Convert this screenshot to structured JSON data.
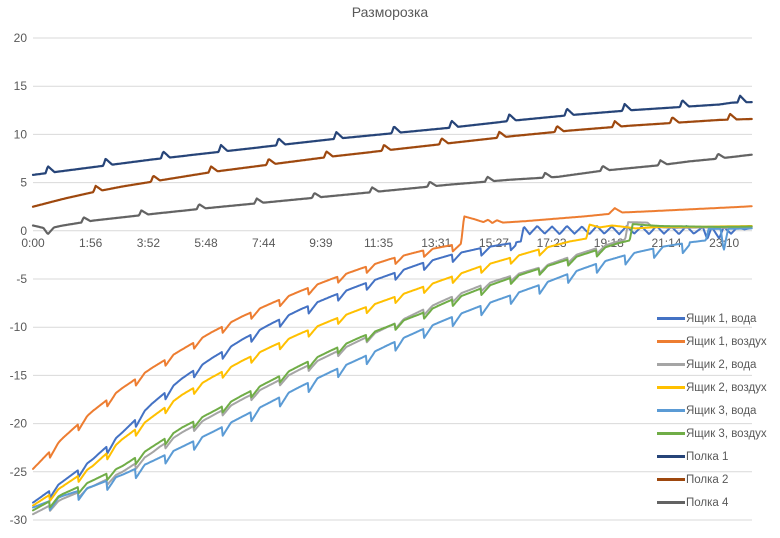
{
  "chart_data": {
    "type": "line",
    "title": "Разморозка",
    "x_tick_labels": [
      "0:00",
      "1:56",
      "3:52",
      "5:48",
      "7:44",
      "9:39",
      "11:35",
      "13:31",
      "15:27",
      "17:23",
      "19:18",
      "21:14",
      "23:10"
    ],
    "x_tick_hours": [
      0,
      1.933,
      3.867,
      5.8,
      7.733,
      9.65,
      11.583,
      13.517,
      15.45,
      17.383,
      19.3,
      21.233,
      23.167
    ],
    "x_range": [
      0,
      24.1
    ],
    "y_range": [
      -30,
      20
    ],
    "y_ticks": [
      20,
      15,
      10,
      5,
      0,
      -5,
      -10,
      -15,
      -20,
      -25,
      -30
    ],
    "grid_color": "#D9D9D9",
    "axis_text_color": "#595959",
    "legend_position": "right",
    "series": [
      {
        "name": "Ящик 1, вода",
        "color": "#4472C4",
        "width": 2,
        "ripple": {
          "type": "dip",
          "period": 0.965,
          "phase": 0.55,
          "depth": 0.8,
          "recover": 0.3,
          "cutoff": -1.2
        },
        "points": [
          [
            0,
            -28.2
          ],
          [
            1,
            -26.0
          ],
          [
            2,
            -23.7
          ],
          [
            3,
            -20.9
          ],
          [
            4,
            -17.9
          ],
          [
            5,
            -15.3
          ],
          [
            6,
            -13.2
          ],
          [
            7,
            -11.3
          ],
          [
            8,
            -9.6
          ],
          [
            9,
            -8.1
          ],
          [
            10,
            -6.8
          ],
          [
            11,
            -5.6
          ],
          [
            12,
            -4.5
          ],
          [
            13,
            -3.4
          ],
          [
            14,
            -2.5
          ],
          [
            15,
            -1.8
          ],
          [
            16,
            -1.3
          ],
          [
            16.35,
            -1.1
          ],
          [
            16.45,
            0.45
          ],
          [
            16.65,
            -0.35
          ],
          [
            16.9,
            0.5
          ],
          [
            17.15,
            -0.3
          ],
          [
            17.4,
            0.45
          ],
          [
            17.65,
            -0.35
          ],
          [
            17.9,
            0.5
          ],
          [
            18.15,
            -0.3
          ],
          [
            18.4,
            0.45
          ],
          [
            18.65,
            -0.35
          ],
          [
            18.9,
            0.5
          ],
          [
            19.15,
            -0.3
          ],
          [
            19.4,
            0.45
          ],
          [
            19.65,
            -0.35
          ],
          [
            19.9,
            0.5
          ],
          [
            20.15,
            -0.3
          ],
          [
            20.4,
            0.45
          ],
          [
            20.65,
            -0.35
          ],
          [
            20.9,
            0.5
          ],
          [
            21.15,
            -0.3
          ],
          [
            21.4,
            0.45
          ],
          [
            21.65,
            -0.35
          ],
          [
            21.9,
            0.5
          ],
          [
            22.15,
            -0.3
          ],
          [
            22.45,
            0.4
          ],
          [
            22.6,
            -0.9
          ],
          [
            22.75,
            0.4
          ],
          [
            23.0,
            -0.8
          ],
          [
            23.15,
            0.4
          ],
          [
            23.4,
            -0.3
          ],
          [
            23.6,
            0.35
          ],
          [
            23.85,
            0.15
          ],
          [
            24.1,
            0.3
          ]
        ]
      },
      {
        "name": "Ящик 1, воздух",
        "color": "#ED7D31",
        "width": 2,
        "ripple": {
          "type": "dip",
          "period": 0.965,
          "phase": 0.55,
          "depth": 0.7,
          "recover": 0.3,
          "cutoff": -1.2
        },
        "points": [
          [
            0,
            -24.7
          ],
          [
            1,
            -21.5
          ],
          [
            2,
            -18.7
          ],
          [
            3,
            -16.3
          ],
          [
            4,
            -14.2
          ],
          [
            5,
            -12.3
          ],
          [
            6,
            -10.5
          ],
          [
            7,
            -8.9
          ],
          [
            8,
            -7.5
          ],
          [
            9,
            -6.2
          ],
          [
            10,
            -5.0
          ],
          [
            11,
            -3.9
          ],
          [
            12,
            -2.9
          ],
          [
            13,
            -2.1
          ],
          [
            14,
            -1.5
          ],
          [
            14.35,
            -1.3
          ],
          [
            14.45,
            1.5
          ],
          [
            14.8,
            1.2
          ],
          [
            15.1,
            0.9
          ],
          [
            15.25,
            1.15
          ],
          [
            15.4,
            0.8
          ],
          [
            15.55,
            1.1
          ],
          [
            15.75,
            0.85
          ],
          [
            16.5,
            1.0
          ],
          [
            17.5,
            1.25
          ],
          [
            18.5,
            1.5
          ],
          [
            19.3,
            1.75
          ],
          [
            19.5,
            2.35
          ],
          [
            19.75,
            1.9
          ],
          [
            20.5,
            2.0
          ],
          [
            21.5,
            2.15
          ],
          [
            22.5,
            2.3
          ],
          [
            23.5,
            2.45
          ],
          [
            24.1,
            2.55
          ]
        ]
      },
      {
        "name": "Ящик 2, вода",
        "color": "#A5A5A5",
        "width": 2,
        "ripple": {
          "type": "dip",
          "period": 0.965,
          "phase": 0.55,
          "depth": 0.6,
          "recover": 0.3,
          "cutoff": -1.2
        },
        "points": [
          [
            0,
            -29.4
          ],
          [
            1,
            -27.8
          ],
          [
            2,
            -26.5
          ],
          [
            3,
            -25.0
          ],
          [
            4,
            -23.0
          ],
          [
            4.25,
            -22.4
          ],
          [
            5,
            -20.9
          ],
          [
            6,
            -19.2
          ],
          [
            7,
            -17.5
          ],
          [
            8,
            -15.9
          ],
          [
            9,
            -14.3
          ],
          [
            10,
            -12.8
          ],
          [
            11,
            -11.3
          ],
          [
            12,
            -9.8
          ],
          [
            13,
            -8.3
          ],
          [
            14,
            -6.9
          ],
          [
            15,
            -5.7
          ],
          [
            16,
            -4.7
          ],
          [
            17,
            -3.8
          ],
          [
            18,
            -2.7
          ],
          [
            19,
            -1.7
          ],
          [
            19.5,
            -1.2
          ],
          [
            19.85,
            -0.9
          ],
          [
            19.95,
            0.9
          ],
          [
            20.6,
            0.85
          ],
          [
            20.75,
            0.4
          ],
          [
            21.5,
            0.3
          ],
          [
            22.5,
            0.35
          ],
          [
            23.5,
            0.3
          ],
          [
            24.1,
            0.4
          ]
        ]
      },
      {
        "name": "Ящик 2, воздух",
        "color": "#FFC000",
        "width": 2,
        "ripple": {
          "type": "dip",
          "period": 0.965,
          "phase": 0.55,
          "depth": 0.7,
          "recover": 0.3,
          "cutoff": -1.2
        },
        "points": [
          [
            0,
            -28.5
          ],
          [
            1,
            -26.5
          ],
          [
            2,
            -24.4
          ],
          [
            3,
            -21.6
          ],
          [
            4,
            -19.3
          ],
          [
            5,
            -17.0
          ],
          [
            6,
            -15.2
          ],
          [
            7,
            -13.5
          ],
          [
            8,
            -12.0
          ],
          [
            9,
            -10.6
          ],
          [
            10,
            -9.3
          ],
          [
            11,
            -8.1
          ],
          [
            12,
            -7.0
          ],
          [
            13,
            -5.9
          ],
          [
            14,
            -4.8
          ],
          [
            15,
            -3.7
          ],
          [
            16,
            -2.8
          ],
          [
            17,
            -1.9
          ],
          [
            18,
            -1.1
          ],
          [
            18.55,
            -0.8
          ],
          [
            18.65,
            0.65
          ],
          [
            19.0,
            0.35
          ],
          [
            19.4,
            0.55
          ],
          [
            19.7,
            0.45
          ],
          [
            20.2,
            0.25
          ],
          [
            21,
            0.4
          ],
          [
            22,
            0.4
          ],
          [
            23,
            0.45
          ],
          [
            24.1,
            0.5
          ]
        ]
      },
      {
        "name": "Ящик 3, вода",
        "color": "#5B9BD5",
        "width": 2,
        "ripple": {
          "type": "dip",
          "period": 0.965,
          "phase": 0.55,
          "depth": 1.0,
          "recover": 0.3,
          "cutoff": -1.2
        },
        "points": [
          [
            0,
            -28.7
          ],
          [
            1,
            -27.5
          ],
          [
            2,
            -26.5
          ],
          [
            3,
            -25.3
          ],
          [
            4,
            -23.9
          ],
          [
            5,
            -22.4
          ],
          [
            6,
            -20.9
          ],
          [
            7,
            -19.3
          ],
          [
            8,
            -17.7
          ],
          [
            9,
            -16.1
          ],
          [
            10,
            -14.6
          ],
          [
            11,
            -13.2
          ],
          [
            12,
            -11.7
          ],
          [
            13,
            -10.3
          ],
          [
            14,
            -9.0
          ],
          [
            15,
            -7.8
          ],
          [
            16,
            -6.7
          ],
          [
            17,
            -5.6
          ],
          [
            18,
            -4.4
          ],
          [
            19,
            -3.3
          ],
          [
            20,
            -2.4
          ],
          [
            21,
            -1.7
          ],
          [
            22,
            -1.2
          ],
          [
            22.55,
            -1.0
          ],
          [
            22.65,
            0.2
          ],
          [
            23.05,
            0.2
          ],
          [
            23.15,
            -2.1
          ],
          [
            23.3,
            0.2
          ],
          [
            24.1,
            0.25
          ]
        ]
      },
      {
        "name": "Ящик 3, воздух",
        "color": "#70AD47",
        "width": 2,
        "ripple": {
          "type": "dip",
          "period": 0.965,
          "phase": 0.55,
          "depth": 0.7,
          "recover": 0.3,
          "cutoff": -1.2
        },
        "points": [
          [
            0,
            -29.0
          ],
          [
            1,
            -27.3
          ],
          [
            2,
            -25.9
          ],
          [
            3,
            -24.4
          ],
          [
            4,
            -22.4
          ],
          [
            5,
            -20.4
          ],
          [
            6,
            -18.8
          ],
          [
            7,
            -17.1
          ],
          [
            8,
            -15.5
          ],
          [
            9,
            -13.9
          ],
          [
            10,
            -12.4
          ],
          [
            11,
            -11.0
          ],
          [
            12,
            -9.8
          ],
          [
            13,
            -8.6
          ],
          [
            14,
            -7.2
          ],
          [
            15,
            -6.0
          ],
          [
            16,
            -4.9
          ],
          [
            17,
            -3.9
          ],
          [
            18,
            -2.9
          ],
          [
            19,
            -1.9
          ],
          [
            19.6,
            -1.3
          ],
          [
            20.0,
            -1.0
          ],
          [
            20.1,
            0.7
          ],
          [
            20.5,
            0.6
          ],
          [
            21,
            0.5
          ],
          [
            22,
            0.45
          ],
          [
            23,
            0.4
          ],
          [
            24.1,
            0.45
          ]
        ]
      },
      {
        "name": "Полка 1",
        "color": "#264478",
        "width": 2.2,
        "ripple": {
          "type": "spike",
          "period": 1.933,
          "phase": 0.5,
          "height": 0.7,
          "rise": 0.08,
          "fall": 0.22
        },
        "points": [
          [
            0,
            5.8
          ],
          [
            2,
            6.6
          ],
          [
            4,
            7.4
          ],
          [
            6,
            8.1
          ],
          [
            8,
            8.8
          ],
          [
            10,
            9.5
          ],
          [
            12,
            10.1
          ],
          [
            14,
            10.7
          ],
          [
            16,
            11.4
          ],
          [
            18,
            12.0
          ],
          [
            20,
            12.5
          ],
          [
            22,
            12.9
          ],
          [
            23,
            13.1
          ],
          [
            23.45,
            13.3
          ],
          [
            24.1,
            13.35
          ]
        ]
      },
      {
        "name": "Полка 2",
        "color": "#9E480E",
        "width": 2.2,
        "ripple": {
          "type": "spike",
          "period": 1.933,
          "phase": 2.1,
          "height": 0.6,
          "rise": 0.08,
          "fall": 0.22
        },
        "points": [
          [
            0,
            2.5
          ],
          [
            1,
            3.3
          ],
          [
            2,
            4.0
          ],
          [
            3,
            4.6
          ],
          [
            4,
            5.1
          ],
          [
            5,
            5.6
          ],
          [
            6,
            6.1
          ],
          [
            8,
            6.9
          ],
          [
            10,
            7.7
          ],
          [
            12,
            8.4
          ],
          [
            14,
            9.1
          ],
          [
            16,
            9.8
          ],
          [
            18,
            10.4
          ],
          [
            20,
            10.9
          ],
          [
            22,
            11.3
          ],
          [
            23,
            11.5
          ],
          [
            24.1,
            11.6
          ]
        ]
      },
      {
        "name": "Полка 4",
        "color": "#636363",
        "width": 2.2,
        "ripple": {
          "type": "spike",
          "period": 1.933,
          "phase": 1.7,
          "height": 0.5,
          "rise": 0.08,
          "fall": 0.22
        },
        "points": [
          [
            0,
            0.55
          ],
          [
            0.35,
            0.3
          ],
          [
            0.5,
            -0.35
          ],
          [
            0.7,
            0.35
          ],
          [
            1,
            0.55
          ],
          [
            2,
            1.05
          ],
          [
            4,
            1.75
          ],
          [
            6,
            2.4
          ],
          [
            8,
            3.0
          ],
          [
            10,
            3.6
          ],
          [
            12,
            4.2
          ],
          [
            14,
            4.8
          ],
          [
            16,
            5.3
          ],
          [
            17.6,
            5.6
          ],
          [
            19,
            6.2
          ],
          [
            20,
            6.5
          ],
          [
            21,
            6.8
          ],
          [
            22,
            7.2
          ],
          [
            23,
            7.5
          ],
          [
            24.1,
            7.9
          ]
        ]
      }
    ]
  }
}
